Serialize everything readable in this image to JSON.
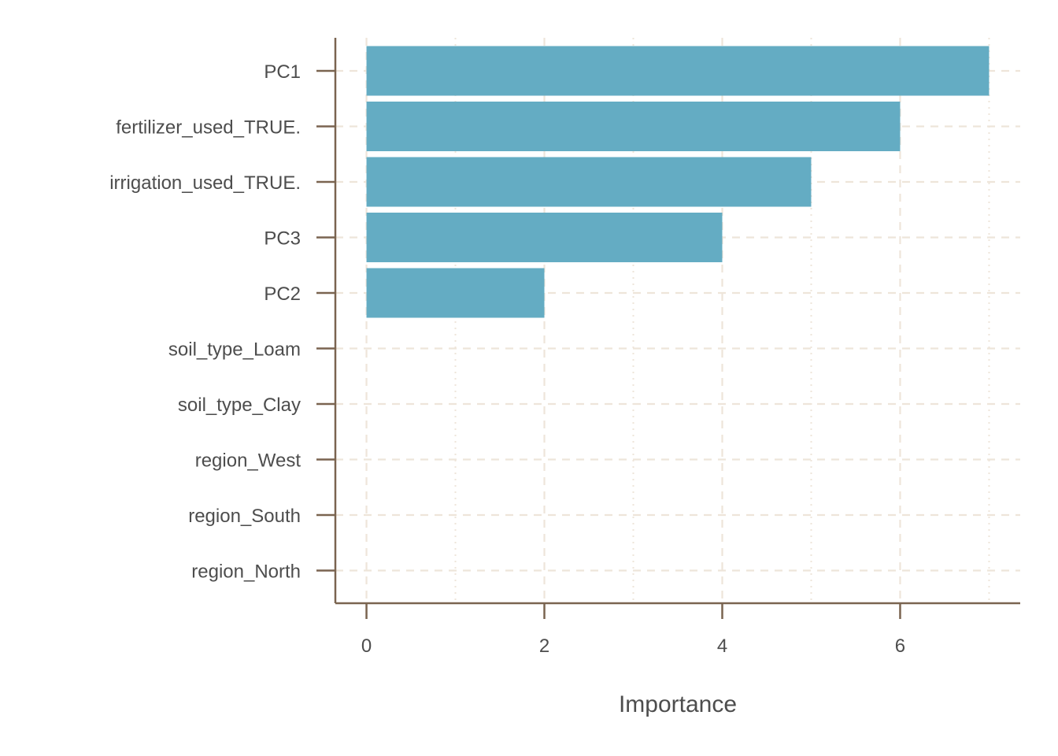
{
  "chart_data": {
    "type": "bar",
    "orientation": "horizontal",
    "title": "",
    "xlabel": "Importance",
    "ylabel": "",
    "categories": [
      "PC1",
      "fertilizer_used_TRUE.",
      "irrigation_used_TRUE.",
      "PC3",
      "PC2",
      "soil_type_Loam",
      "soil_type_Clay",
      "region_West",
      "region_South",
      "region_North"
    ],
    "values": [
      7,
      6,
      5,
      4,
      2,
      0,
      0,
      0,
      0,
      0
    ],
    "xlim": [
      -0.35,
      7.35
    ],
    "x_ticks": [
      0,
      2,
      4,
      6
    ],
    "x_tick_labels": [
      "0",
      "2",
      "4",
      "6"
    ],
    "grid": true,
    "legend": "none",
    "colors": {
      "bar": "#64acc3",
      "axis": "#7a6450",
      "grid": "#eee5da",
      "text": "#4d4d4d"
    }
  }
}
